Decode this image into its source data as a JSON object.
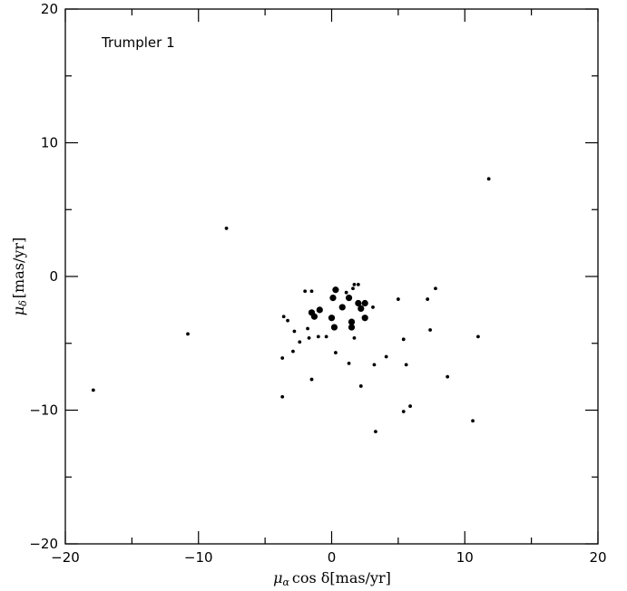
{
  "chart_data": {
    "type": "scatter",
    "title": "",
    "annotation": "Trumpler 1",
    "xlabel": {
      "prefix": "μ",
      "sub": "α",
      "suffix": "cos δ[mas/yr]"
    },
    "ylabel": {
      "prefix": "μ",
      "sub": "δ",
      "suffix": "[mas/yr]"
    },
    "xlim": [
      -20,
      20
    ],
    "ylim": [
      -20,
      20
    ],
    "x_ticks": [
      "−20",
      "−10",
      "0",
      "10",
      "20"
    ],
    "y_ticks": [
      "−20",
      "−10",
      "0",
      "10",
      "20"
    ],
    "grid": false,
    "points": [
      {
        "x": 0.3,
        "y": -1.0,
        "size": "large"
      },
      {
        "x": 1.3,
        "y": -1.6,
        "size": "large"
      },
      {
        "x": 0.8,
        "y": -2.3,
        "size": "large"
      },
      {
        "x": 2.0,
        "y": -2.0,
        "size": "large"
      },
      {
        "x": 2.5,
        "y": -2.0,
        "size": "large"
      },
      {
        "x": 2.2,
        "y": -2.4,
        "size": "large"
      },
      {
        "x": -1.5,
        "y": -2.7,
        "size": "large"
      },
      {
        "x": -1.3,
        "y": -3.0,
        "size": "large"
      },
      {
        "x": -0.9,
        "y": -2.5,
        "size": "large"
      },
      {
        "x": 0.0,
        "y": -3.1,
        "size": "large"
      },
      {
        "x": 0.1,
        "y": -1.6,
        "size": "large"
      },
      {
        "x": 1.5,
        "y": -3.4,
        "size": "large"
      },
      {
        "x": 1.5,
        "y": -3.8,
        "size": "large"
      },
      {
        "x": 0.2,
        "y": -3.8,
        "size": "large"
      },
      {
        "x": 2.5,
        "y": -3.1,
        "size": "large"
      },
      {
        "x": 1.7,
        "y": -0.6,
        "size": "small"
      },
      {
        "x": 2.0,
        "y": -0.6,
        "size": "small"
      },
      {
        "x": 1.6,
        "y": -0.9,
        "size": "small"
      },
      {
        "x": -2.0,
        "y": -1.1,
        "size": "small"
      },
      {
        "x": -1.5,
        "y": -1.1,
        "size": "small"
      },
      {
        "x": 1.1,
        "y": -1.2,
        "size": "small"
      },
      {
        "x": 3.1,
        "y": -2.3,
        "size": "small"
      },
      {
        "x": 5.0,
        "y": -1.7,
        "size": "small"
      },
      {
        "x": 7.2,
        "y": -1.7,
        "size": "small"
      },
      {
        "x": 7.8,
        "y": -0.9,
        "size": "small"
      },
      {
        "x": 11.8,
        "y": 7.3,
        "size": "small"
      },
      {
        "x": -7.9,
        "y": 3.6,
        "size": "small"
      },
      {
        "x": -10.8,
        "y": -4.3,
        "size": "small"
      },
      {
        "x": -17.9,
        "y": -8.5,
        "size": "small"
      },
      {
        "x": -3.6,
        "y": -3.0,
        "size": "small"
      },
      {
        "x": -3.3,
        "y": -3.3,
        "size": "small"
      },
      {
        "x": -2.8,
        "y": -4.1,
        "size": "small"
      },
      {
        "x": -1.8,
        "y": -3.9,
        "size": "small"
      },
      {
        "x": -1.7,
        "y": -4.6,
        "size": "small"
      },
      {
        "x": -1.0,
        "y": -4.5,
        "size": "small"
      },
      {
        "x": -0.4,
        "y": -4.5,
        "size": "small"
      },
      {
        "x": -2.4,
        "y": -4.9,
        "size": "small"
      },
      {
        "x": -2.9,
        "y": -5.6,
        "size": "small"
      },
      {
        "x": -3.7,
        "y": -6.1,
        "size": "small"
      },
      {
        "x": 0.3,
        "y": -5.7,
        "size": "small"
      },
      {
        "x": 1.3,
        "y": -6.5,
        "size": "small"
      },
      {
        "x": 1.7,
        "y": -4.6,
        "size": "small"
      },
      {
        "x": 3.2,
        "y": -6.6,
        "size": "small"
      },
      {
        "x": 4.1,
        "y": -6.0,
        "size": "small"
      },
      {
        "x": 5.4,
        "y": -4.7,
        "size": "small"
      },
      {
        "x": 5.6,
        "y": -6.6,
        "size": "small"
      },
      {
        "x": 7.4,
        "y": -4.0,
        "size": "small"
      },
      {
        "x": 11.0,
        "y": -4.5,
        "size": "small"
      },
      {
        "x": 8.7,
        "y": -7.5,
        "size": "small"
      },
      {
        "x": -1.5,
        "y": -7.7,
        "size": "small"
      },
      {
        "x": -3.7,
        "y": -9.0,
        "size": "small"
      },
      {
        "x": 2.2,
        "y": -8.2,
        "size": "small"
      },
      {
        "x": 5.9,
        "y": -9.7,
        "size": "small"
      },
      {
        "x": 5.4,
        "y": -10.1,
        "size": "small"
      },
      {
        "x": 10.6,
        "y": -10.8,
        "size": "small"
      },
      {
        "x": 3.3,
        "y": -11.6,
        "size": "small"
      }
    ]
  }
}
